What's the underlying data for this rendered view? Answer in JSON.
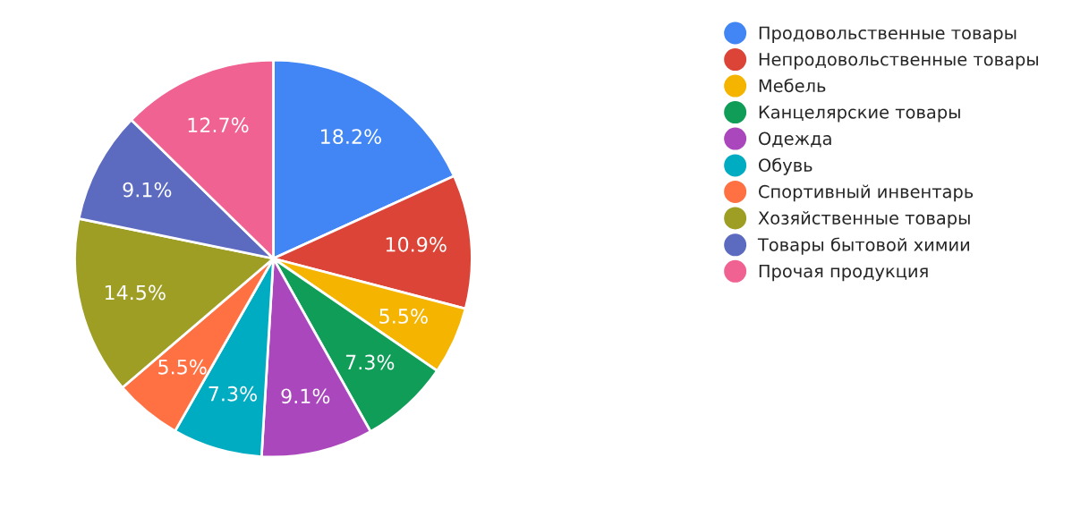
{
  "chart_data": {
    "type": "pie",
    "categories": [
      "Продовольственные товары",
      "Непродовольственные товары",
      "Мебель",
      "Канцелярские товары",
      "Одежда",
      "Обувь",
      "Спортивный инвентарь",
      "Хозяйственные товары",
      "Товары бытовой химии",
      "Прочая продукция"
    ],
    "values": [
      18.2,
      10.9,
      5.5,
      7.3,
      9.1,
      7.3,
      5.5,
      14.5,
      9.1,
      12.7
    ],
    "colors": [
      "#4285f4",
      "#db4437",
      "#f4b400",
      "#0f9d58",
      "#ab47bc",
      "#00acc1",
      "#ff7043",
      "#9e9d24",
      "#5c6bc0",
      "#f06292"
    ],
    "value_labels": [
      "18.2%",
      "10.9%",
      "5.5%",
      "7.3%",
      "9.1%",
      "7.3%",
      "5.5%",
      "14.5%",
      "9.1%",
      "12.7%"
    ],
    "legend": "right"
  }
}
